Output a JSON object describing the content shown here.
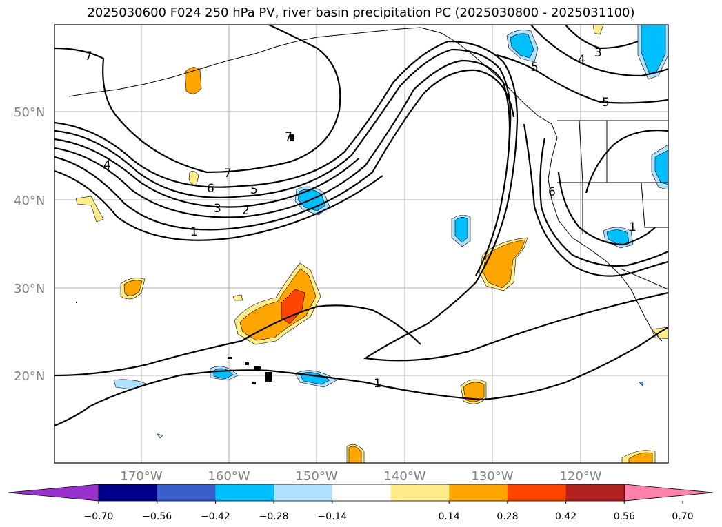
{
  "title": "2025030600 F024 250 hPa PV, river basin precipitation PC (2025030800 - 2025031100)",
  "map": {
    "lat_labels": [
      "50°N",
      "40°N",
      "30°N",
      "20°N"
    ],
    "lon_labels": [
      "170°W",
      "160°W",
      "150°W",
      "140°W",
      "130°W",
      "120°W"
    ],
    "contour_labels": [
      "7",
      "4",
      "7",
      "6",
      "5",
      "3",
      "2",
      "1",
      "7",
      "5",
      "3",
      "4",
      "5",
      "6",
      "1",
      "1"
    ]
  },
  "colorbar": {
    "colors": [
      "#9932CC",
      "#00008B",
      "#3A5FCD",
      "#00BFFF",
      "#B0E2FF",
      "#FFFFFF",
      "#FFEC8B",
      "#FFA500",
      "#FF4500",
      "#B22222",
      "#FF82AB"
    ],
    "ticks": [
      "−0.70",
      "−0.56",
      "−0.42",
      "−0.28",
      "−0.14",
      "0.14",
      "0.28",
      "0.42",
      "0.56",
      "0.70"
    ]
  }
}
